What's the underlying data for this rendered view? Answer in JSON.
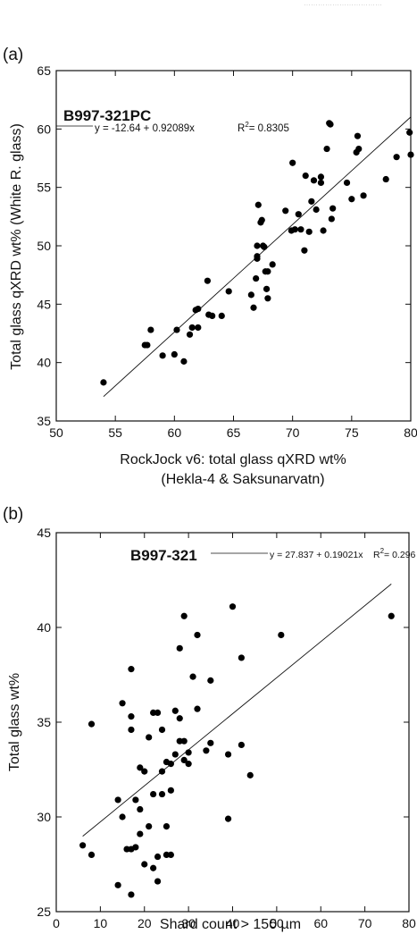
{
  "header_text": "……………………………",
  "chart_data": [
    {
      "type": "scatter",
      "panel_label": "(a)",
      "title": "B997-321PC",
      "equation": "y = -12.64 + 0.92089x",
      "r2_label": "R",
      "r2_value": "= 0.8305",
      "xlabel": "RockJock v6: total glass qXRD wt%",
      "xlabel2": "(Hekla-4 & Saksunarvatn)",
      "ylabel": "Total glass qXRD wt% (White R. glass)",
      "xlim": [
        50,
        80
      ],
      "ylim": [
        35,
        65
      ],
      "xticks": [
        50,
        55,
        60,
        65,
        70,
        75,
        80
      ],
      "yticks": [
        35,
        40,
        45,
        50,
        55,
        60,
        65
      ],
      "grid": false,
      "fit": {
        "intercept": -12.64,
        "slope": 0.92089,
        "x_range": [
          54.0,
          80.0
        ]
      },
      "points": [
        [
          54.0,
          38.3
        ],
        [
          57.5,
          41.5
        ],
        [
          57.7,
          41.5
        ],
        [
          58.0,
          42.8
        ],
        [
          59.0,
          40.6
        ],
        [
          60.0,
          40.7
        ],
        [
          60.2,
          42.8
        ],
        [
          60.8,
          40.1
        ],
        [
          61.3,
          42.4
        ],
        [
          61.5,
          43.0
        ],
        [
          61.8,
          44.5
        ],
        [
          62.0,
          43.0
        ],
        [
          62.0,
          44.6
        ],
        [
          62.8,
          47.0
        ],
        [
          62.9,
          44.1
        ],
        [
          63.2,
          44.0
        ],
        [
          64.0,
          44.0
        ],
        [
          64.6,
          46.1
        ],
        [
          66.5,
          45.8
        ],
        [
          66.7,
          44.7
        ],
        [
          66.9,
          47.2
        ],
        [
          67.0,
          48.9
        ],
        [
          67.0,
          49.1
        ],
        [
          67.0,
          50.0
        ],
        [
          67.1,
          53.5
        ],
        [
          67.3,
          52.0
        ],
        [
          67.4,
          52.2
        ],
        [
          67.5,
          50.0
        ],
        [
          67.6,
          49.9
        ],
        [
          67.7,
          47.8
        ],
        [
          67.8,
          46.3
        ],
        [
          67.9,
          45.5
        ],
        [
          67.9,
          47.8
        ],
        [
          68.3,
          48.4
        ],
        [
          69.4,
          53.0
        ],
        [
          69.9,
          51.3
        ],
        [
          70.0,
          57.1
        ],
        [
          70.2,
          51.4
        ],
        [
          70.5,
          52.7
        ],
        [
          70.7,
          51.4
        ],
        [
          71.0,
          49.6
        ],
        [
          71.1,
          56.0
        ],
        [
          71.4,
          51.2
        ],
        [
          71.6,
          53.8
        ],
        [
          71.8,
          55.6
        ],
        [
          72.0,
          53.1
        ],
        [
          72.4,
          55.4
        ],
        [
          72.4,
          55.9
        ],
        [
          72.6,
          51.3
        ],
        [
          72.9,
          58.3
        ],
        [
          73.1,
          60.5
        ],
        [
          73.2,
          60.4
        ],
        [
          73.3,
          52.3
        ],
        [
          73.4,
          53.2
        ],
        [
          74.6,
          55.4
        ],
        [
          75.0,
          54.0
        ],
        [
          75.4,
          58.0
        ],
        [
          75.5,
          59.4
        ],
        [
          75.6,
          58.3
        ],
        [
          76.0,
          54.3
        ],
        [
          77.9,
          55.7
        ],
        [
          78.8,
          57.6
        ],
        [
          79.9,
          59.7
        ],
        [
          80.0,
          57.8
        ]
      ]
    },
    {
      "type": "scatter",
      "panel_label": "(b)",
      "title": "B997-321",
      "equation": "y = 27.837 + 0.19021x",
      "r2_label": "R",
      "r2_value": "= 0.296",
      "xlabel": "Shard count > 150 µm",
      "ylabel": "Total glass wt%",
      "xlim": [
        0,
        80
      ],
      "ylim": [
        25,
        45
      ],
      "xticks": [
        0,
        10,
        20,
        30,
        40,
        50,
        60,
        70,
        80
      ],
      "yticks": [
        25,
        30,
        35,
        40,
        45
      ],
      "grid": false,
      "fit": {
        "intercept": 27.837,
        "slope": 0.19021,
        "x_range": [
          6.0,
          76.0
        ]
      },
      "points": [
        [
          6,
          28.5
        ],
        [
          8,
          34.9
        ],
        [
          8,
          28.0
        ],
        [
          14,
          30.9
        ],
        [
          14,
          26.4
        ],
        [
          15,
          36.0
        ],
        [
          15,
          30.0
        ],
        [
          16,
          28.3
        ],
        [
          17,
          37.8
        ],
        [
          17,
          35.3
        ],
        [
          17,
          34.6
        ],
        [
          17,
          28.3
        ],
        [
          17,
          25.9
        ],
        [
          18,
          30.9
        ],
        [
          18,
          28.4
        ],
        [
          19,
          30.4
        ],
        [
          19,
          29.1
        ],
        [
          19,
          32.6
        ],
        [
          20,
          32.4
        ],
        [
          20,
          27.5
        ],
        [
          21,
          34.2
        ],
        [
          21,
          29.5
        ],
        [
          22,
          35.5
        ],
        [
          22,
          31.2
        ],
        [
          22,
          27.3
        ],
        [
          23,
          27.9
        ],
        [
          23,
          26.6
        ],
        [
          23,
          35.5
        ],
        [
          24,
          32.4
        ],
        [
          24,
          34.6
        ],
        [
          24,
          31.2
        ],
        [
          25,
          32.9
        ],
        [
          25,
          29.5
        ],
        [
          25,
          28.0
        ],
        [
          26,
          28.0
        ],
        [
          26,
          32.8
        ],
        [
          26,
          31.4
        ],
        [
          27,
          33.3
        ],
        [
          27,
          35.6
        ],
        [
          28,
          38.9
        ],
        [
          28,
          34.0
        ],
        [
          28,
          35.2
        ],
        [
          29,
          40.6
        ],
        [
          29,
          34.0
        ],
        [
          29,
          33.0
        ],
        [
          30,
          32.8
        ],
        [
          30,
          33.4
        ],
        [
          31,
          37.4
        ],
        [
          32,
          39.6
        ],
        [
          32,
          35.7
        ],
        [
          34,
          33.5
        ],
        [
          35,
          37.2
        ],
        [
          35,
          33.9
        ],
        [
          39,
          33.3
        ],
        [
          39,
          29.9
        ],
        [
          40,
          41.1
        ],
        [
          42,
          38.4
        ],
        [
          42,
          33.8
        ],
        [
          44,
          32.2
        ],
        [
          51,
          39.6
        ],
        [
          76,
          40.6
        ]
      ]
    }
  ]
}
